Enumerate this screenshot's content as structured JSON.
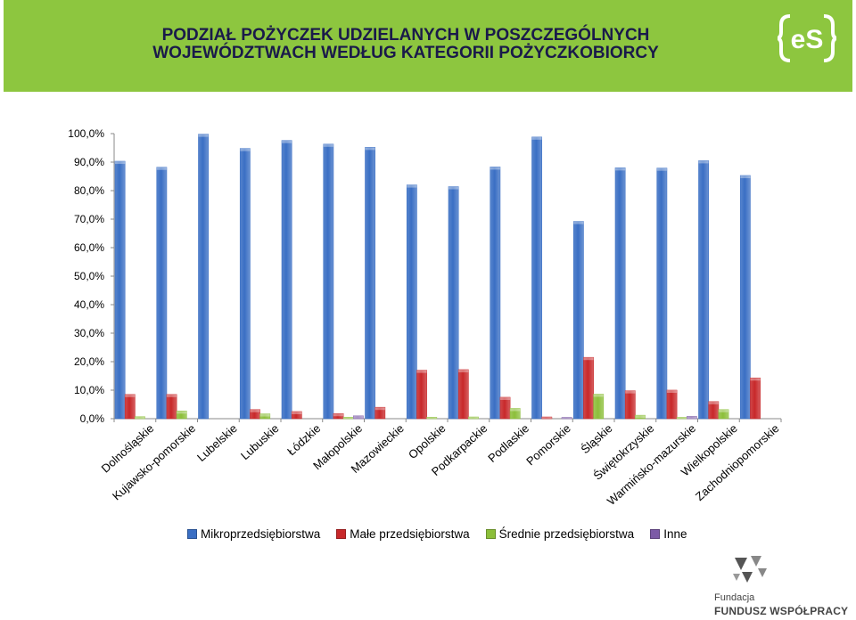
{
  "header": {
    "title_line1": "PODZIAŁ POŻYCZEK UDZIELANYCH W POSZCZEGÓLNYCH",
    "title_line2": "WOJEWÓDZTWACH WEDŁUG KATEGORII POŻYCZKOBIORCY",
    "banner_color": "#8dc63f",
    "logo_text": "eS"
  },
  "footer": {
    "line1": "Fundacja",
    "line2": "FUNDUSZ WSPÓŁPRACY"
  },
  "chart_data": {
    "type": "bar",
    "title": "",
    "xlabel": "",
    "ylabel": "",
    "ylim": [
      0,
      100
    ],
    "yticks": [
      "0,0%",
      "10,0%",
      "20,0%",
      "30,0%",
      "40,0%",
      "50,0%",
      "60,0%",
      "70,0%",
      "80,0%",
      "90,0%",
      "100,0%"
    ],
    "grid": false,
    "legend_position": "bottom",
    "categories": [
      "Dolnośląskie",
      "Kujawsko-pomorskie",
      "Lubelskie",
      "Lubuskie",
      "Łódzkie",
      "Małopolskie",
      "Mazowieckie",
      "Opolskie",
      "Podkarpackie",
      "Podlaskie",
      "Pomorskie",
      "Śląskie",
      "Świętokrzyskie",
      "Warmińsko-mazurskie",
      "Wielkopolskie",
      "Zachodniopomorskie"
    ],
    "series": [
      {
        "name": "Mikroprzedsiębiorstwa",
        "color": "#3a6fc4",
        "values": [
          90.3,
          88.2,
          99.8,
          94.8,
          97.6,
          96.3,
          95.2,
          82.0,
          81.4,
          88.3,
          98.8,
          69.2,
          88.0,
          87.9,
          90.5,
          85.3
        ]
      },
      {
        "name": "Małe przedsiębiorstwa",
        "color": "#c8282a",
        "values": [
          8.5,
          8.5,
          0,
          3.2,
          2.5,
          1.8,
          4.0,
          17.0,
          17.2,
          7.5,
          0.6,
          21.5,
          9.8,
          10.0,
          6.0,
          14.3
        ]
      },
      {
        "name": "Średnie przedsiębiorstwa",
        "color": "#8cbf3a",
        "values": [
          0.7,
          2.7,
          0,
          1.7,
          0,
          0.5,
          0,
          0.5,
          0.6,
          3.6,
          0,
          8.6,
          1.2,
          0.3,
          3.2,
          0
        ]
      },
      {
        "name": "Inne",
        "color": "#7c5aa6",
        "values": [
          0,
          0,
          0,
          0,
          0,
          1.0,
          0,
          0,
          0,
          0,
          0.2,
          0,
          0,
          0.8,
          0,
          0
        ]
      }
    ]
  }
}
